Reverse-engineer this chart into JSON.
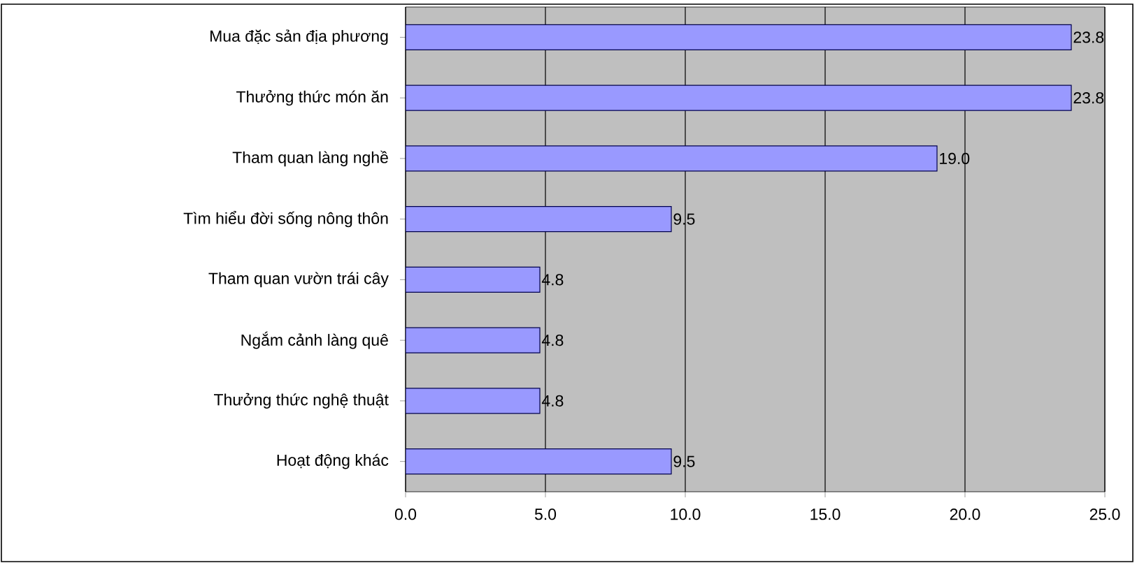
{
  "chart_data": {
    "type": "bar",
    "orientation": "horizontal",
    "categories": [
      "Mua đặc sản địa phương",
      "Thưởng thức món ăn",
      "Tham quan làng nghề",
      "Tìm hiểu đời sống nông thôn",
      "Tham quan vườn trái cây",
      "Ngắm cảnh làng quê",
      "Thưởng thức nghệ thuật",
      "Hoạt động khác"
    ],
    "values": [
      23.8,
      23.8,
      19.0,
      9.5,
      4.8,
      4.8,
      4.8,
      9.5
    ],
    "value_labels": [
      "23.8",
      "23.8",
      "19.0",
      "9.5",
      "4.8",
      "4.8",
      "4.8",
      "9.5"
    ],
    "color": "#9999ff",
    "xlim": [
      0,
      25
    ],
    "xticks": [
      {
        "value": 0,
        "label": "0.0"
      },
      {
        "value": 5,
        "label": "5.0"
      },
      {
        "value": 10,
        "label": "10.0"
      },
      {
        "value": 15,
        "label": "15.0"
      },
      {
        "value": 20,
        "label": "20.0"
      },
      {
        "value": 25,
        "label": "25.0"
      }
    ],
    "grid": "x"
  }
}
